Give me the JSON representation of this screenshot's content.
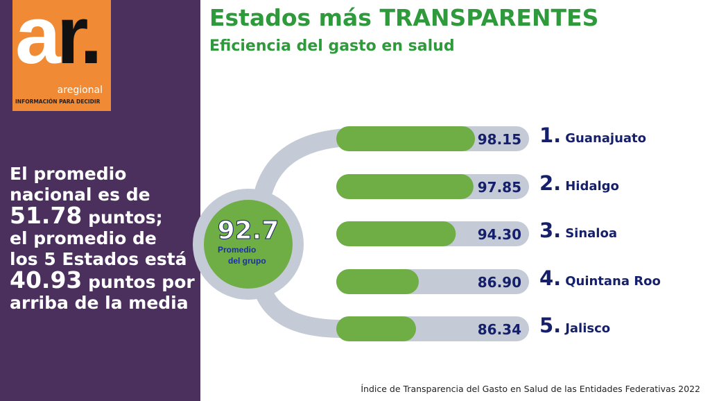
{
  "logo": {
    "text": "ar.",
    "name": "aregional",
    "tagline": "INFORMACIÓN PARA DECIDIR"
  },
  "summary": {
    "l1": "El promedio",
    "l2": "nacional es de",
    "l3a": "51.78",
    "l3b": " puntos;",
    "l4": "el promedio de",
    "l5": "los 5 Estados está",
    "l6a": "40.93",
    "l6b": " puntos por",
    "l7": "arriba de la media"
  },
  "title": "Estados más TRANSPARENTES",
  "subtitle": "Eficiencia del gasto en salud",
  "center": {
    "value": "92.7",
    "label1": "Promedio",
    "label2": "del grupo"
  },
  "source": "Índice de Transparencia del Gasto en Salud de las Entidades Federativas 2022",
  "colors": {
    "panel": "#4b2f5d",
    "logo": "#f08a34",
    "green": "#6fae45",
    "track": "#c4cbd6",
    "navy": "#16206a",
    "title": "#2f9a3c"
  },
  "chart_data": {
    "type": "bar",
    "orientation": "horizontal",
    "categories": [
      "Guanajuato",
      "Hidalgo",
      "Sinaloa",
      "Quintana Roo",
      "Jalisco"
    ],
    "ranks": [
      "1.",
      "2.",
      "3.",
      "4.",
      "5."
    ],
    "values": [
      98.15,
      97.85,
      94.3,
      86.9,
      86.34
    ],
    "labels": [
      "98.15",
      "97.85",
      "94.30",
      "86.90",
      "86.34"
    ]
  }
}
